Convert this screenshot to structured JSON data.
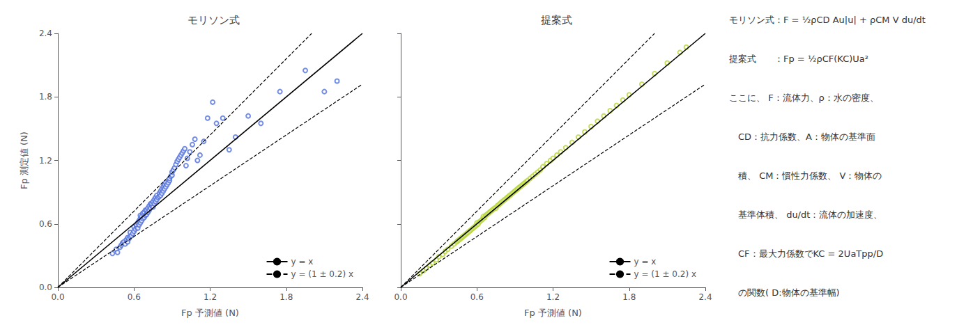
{
  "chart_data": [
    {
      "type": "scatter",
      "title": "モリソン式",
      "xlabel": "Fp 予測値 (N)",
      "ylabel": "Fp 測定値 (N)",
      "xlim": [
        0.0,
        2.4
      ],
      "ylim": [
        0.0,
        2.4
      ],
      "xticks": [
        {
          "value": 0.0,
          "label": "0.0"
        },
        0.6,
        1.2,
        1.8,
        2.4
      ],
      "yticks": [
        {
          "value": 0.0,
          "label": "0.0"
        },
        0.6,
        1.2,
        1.8,
        2.4
      ],
      "grid": false,
      "legend": "lower right",
      "series": [
        {
          "type": "scatter",
          "marker": "open circle",
          "x": [
            0.43,
            0.46,
            0.47,
            0.49,
            0.5,
            0.51,
            0.52,
            0.53,
            0.54,
            0.55,
            0.55,
            0.56,
            0.57,
            0.57,
            0.58,
            0.59,
            0.6,
            0.6,
            0.61,
            0.62,
            0.62,
            0.63,
            0.63,
            0.64,
            0.64,
            0.65,
            0.65,
            0.65,
            0.66,
            0.66,
            0.67,
            0.67,
            0.68,
            0.68,
            0.69,
            0.69,
            0.7,
            0.7,
            0.71,
            0.71,
            0.72,
            0.72,
            0.73,
            0.73,
            0.74,
            0.74,
            0.75,
            0.75,
            0.76,
            0.76,
            0.77,
            0.77,
            0.78,
            0.78,
            0.79,
            0.8,
            0.8,
            0.81,
            0.81,
            0.82,
            0.82,
            0.83,
            0.83,
            0.84,
            0.84,
            0.85,
            0.85,
            0.86,
            0.87,
            0.88,
            0.88,
            0.89,
            0.9,
            0.9,
            0.91,
            0.92,
            0.93,
            0.94,
            0.95,
            0.96,
            0.97,
            0.98,
            0.99,
            1.0,
            1.01,
            1.02,
            1.04,
            1.06,
            1.08,
            1.1,
            1.12,
            1.15,
            1.18,
            1.22,
            1.25,
            1.3,
            1.35,
            1.4,
            1.5,
            1.6,
            1.75,
            1.95,
            2.1,
            2.2
          ],
          "values": [
            0.32,
            0.36,
            0.33,
            0.38,
            0.4,
            0.42,
            0.43,
            0.41,
            0.45,
            0.43,
            0.47,
            0.46,
            0.48,
            0.52,
            0.49,
            0.51,
            0.53,
            0.57,
            0.55,
            0.57,
            0.59,
            0.56,
            0.61,
            0.63,
            0.59,
            0.61,
            0.65,
            0.68,
            0.63,
            0.67,
            0.65,
            0.7,
            0.66,
            0.71,
            0.68,
            0.73,
            0.69,
            0.73,
            0.71,
            0.75,
            0.73,
            0.77,
            0.75,
            0.79,
            0.77,
            0.79,
            0.76,
            0.81,
            0.79,
            0.83,
            0.81,
            0.85,
            0.83,
            0.87,
            0.85,
            0.86,
            0.89,
            0.87,
            0.91,
            0.89,
            0.93,
            0.91,
            0.95,
            0.93,
            0.97,
            0.95,
            0.99,
            0.97,
            0.99,
            1.01,
            1.03,
            1.05,
            1.06,
            1.09,
            1.11,
            1.13,
            1.16,
            1.19,
            1.21,
            1.23,
            1.25,
            1.27,
            1.29,
            1.31,
            1.15,
            1.22,
            1.28,
            1.35,
            1.4,
            1.2,
            1.25,
            1.38,
            1.6,
            1.75,
            1.55,
            1.6,
            1.3,
            1.42,
            1.62,
            1.55,
            1.85,
            2.05,
            1.85,
            1.95
          ]
        },
        {
          "type": "line",
          "name": "y = x",
          "color": "black",
          "line_style": "solid",
          "x": [
            0.0,
            2.4
          ],
          "values": [
            0.0,
            2.4
          ]
        },
        {
          "type": "line",
          "name": "y = (1 ± 0.2) x",
          "color": "black",
          "line_style": "dashed",
          "x": [
            0.0,
            2.0
          ],
          "values": [
            0.0,
            2.4
          ]
        },
        {
          "type": "line",
          "name": "y = (1 ± 0.2) x",
          "color": "black",
          "line_style": "dashed",
          "x": [
            0.0,
            2.4
          ],
          "values": [
            0.0,
            1.92
          ]
        }
      ]
    },
    {
      "type": "scatter",
      "title": "提案式",
      "xlabel": "Fp 予測値 (N)",
      "xlim": [
        0.0,
        2.4
      ],
      "ylim": [
        0.0,
        2.4
      ],
      "xticks": [
        {
          "value": 0.0,
          "label": "0.0"
        },
        0.6,
        1.2,
        1.8,
        2.4
      ],
      "yticks": [
        0.0,
        0.6,
        1.2,
        1.8,
        2.4
      ],
      "tick_labels": "x",
      "grid": false,
      "legend": "lower right",
      "series": [
        {
          "type": "scatter",
          "marker": "open circle",
          "x": [
            0.15,
            0.18,
            0.2,
            0.23,
            0.25,
            0.28,
            0.3,
            0.33,
            0.35,
            0.37,
            0.4,
            0.42,
            0.44,
            0.45,
            0.46,
            0.47,
            0.48,
            0.49,
            0.5,
            0.51,
            0.52,
            0.53,
            0.54,
            0.55,
            0.56,
            0.57,
            0.58,
            0.59,
            0.6,
            0.6,
            0.61,
            0.62,
            0.63,
            0.64,
            0.65,
            0.65,
            0.66,
            0.67,
            0.68,
            0.69,
            0.7,
            0.71,
            0.72,
            0.73,
            0.74,
            0.75,
            0.76,
            0.77,
            0.78,
            0.79,
            0.8,
            0.81,
            0.82,
            0.83,
            0.84,
            0.85,
            0.86,
            0.87,
            0.88,
            0.89,
            0.9,
            0.91,
            0.92,
            0.93,
            0.94,
            0.95,
            0.96,
            0.97,
            0.98,
            0.99,
            1.0,
            1.02,
            1.04,
            1.06,
            1.08,
            1.1,
            1.12,
            1.15,
            1.18,
            1.2,
            1.23,
            1.26,
            1.3,
            1.35,
            1.4,
            1.45,
            1.5,
            1.55,
            1.6,
            1.65,
            1.7,
            1.75,
            1.8,
            1.9,
            2.0,
            2.1,
            2.2,
            2.25
          ],
          "values": [
            0.13,
            0.16,
            0.18,
            0.21,
            0.23,
            0.26,
            0.29,
            0.31,
            0.34,
            0.36,
            0.39,
            0.41,
            0.43,
            0.44,
            0.45,
            0.46,
            0.47,
            0.48,
            0.49,
            0.5,
            0.51,
            0.52,
            0.53,
            0.54,
            0.55,
            0.56,
            0.57,
            0.58,
            0.59,
            0.61,
            0.6,
            0.62,
            0.63,
            0.64,
            0.65,
            0.67,
            0.66,
            0.68,
            0.69,
            0.7,
            0.71,
            0.72,
            0.73,
            0.74,
            0.75,
            0.75,
            0.77,
            0.78,
            0.79,
            0.8,
            0.81,
            0.82,
            0.83,
            0.84,
            0.85,
            0.86,
            0.87,
            0.88,
            0.89,
            0.9,
            0.91,
            0.92,
            0.93,
            0.94,
            0.95,
            0.96,
            0.97,
            0.98,
            0.99,
            1.0,
            1.01,
            1.03,
            1.05,
            1.07,
            1.09,
            1.11,
            1.14,
            1.17,
            1.2,
            1.22,
            1.25,
            1.28,
            1.32,
            1.37,
            1.42,
            1.47,
            1.52,
            1.57,
            1.62,
            1.67,
            1.72,
            1.77,
            1.82,
            1.92,
            2.02,
            2.12,
            2.22,
            2.27
          ]
        },
        {
          "type": "line",
          "name": "y = x",
          "color": "black",
          "line_style": "solid",
          "x": [
            0.0,
            2.4
          ],
          "values": [
            0.0,
            2.4
          ]
        },
        {
          "type": "line",
          "name": "y = (1 ± 0.2) x",
          "color": "black",
          "line_style": "dashed",
          "x": [
            0.0,
            2.0
          ],
          "values": [
            0.0,
            2.4
          ]
        },
        {
          "type": "line",
          "name": "y = (1 ± 0.2) x",
          "color": "black",
          "line_style": "dashed",
          "x": [
            0.0,
            2.4
          ],
          "values": [
            0.0,
            1.92
          ]
        }
      ],
      "annotations": [
        "モリソン式：F = ½ρCD Au|u| + ρCM V du/dt",
        "提案式　　：Fp = ½ρCF(KC)Ua²",
        "ここに、 F：流体力、ρ：水の密度、",
        "　CD：抗力係数、A：物体の基準面",
        "　積、 CM：慣性力係数、 V：物体の",
        "　基準体積、 du/dt：流体の加速度、",
        "　CF：最大力係数でKC = 2UaTpp/D",
        "　の関数( D:物体の基準幅)"
      ]
    }
  ]
}
